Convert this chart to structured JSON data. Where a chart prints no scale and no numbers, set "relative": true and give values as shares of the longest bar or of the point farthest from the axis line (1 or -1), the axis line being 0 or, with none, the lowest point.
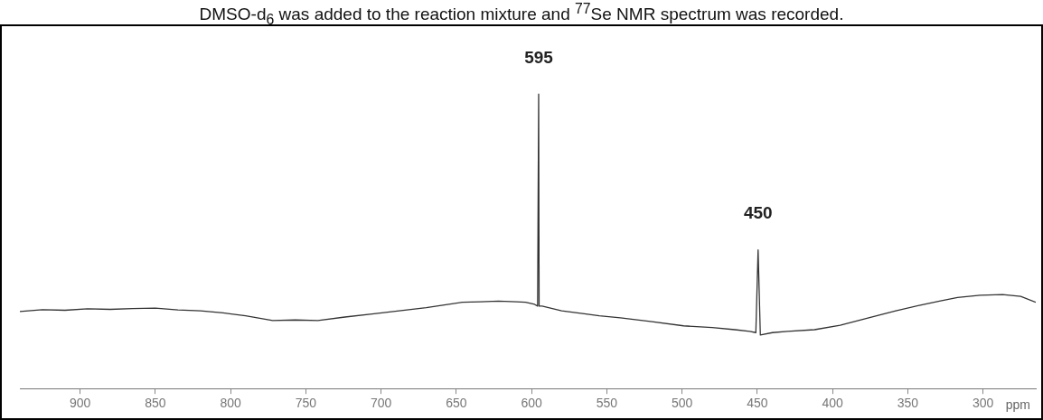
{
  "chart_data": {
    "type": "line",
    "title": "DMSO-d$_{6}$ was added to the reaction mixture and $^{77}$Se NMR spectrum was recorded.",
    "xlabel": "ppm",
    "relative": true,
    "grid": false,
    "legend": false,
    "marker": "none",
    "line_style": "solid",
    "tick_labels": "x",
    "xlim": [
      940,
      265
    ],
    "xticks": [
      900,
      850,
      800,
      750,
      700,
      650,
      600,
      550,
      500,
      450,
      400,
      350,
      300
    ],
    "series": [
      {
        "color": "#333333",
        "x": [
          940,
          925,
          910,
          895,
          880,
          865,
          850,
          835,
          820,
          805,
          790,
          772,
          757,
          742,
          724,
          706,
          688,
          670,
          658,
          646,
          634,
          622,
          610,
          604,
          598,
          596,
          595.3,
          595,
          593,
          580,
          565,
          555,
          541,
          520,
          499,
          480,
          465,
          455,
          451,
          449.5,
          448,
          440,
          430,
          412,
          395,
          376,
          358,
          341,
          329,
          317,
          302,
          287,
          275,
          265
        ],
        "values": [
          0.262,
          0.268,
          0.266,
          0.271,
          0.269,
          0.272,
          0.273,
          0.267,
          0.264,
          0.257,
          0.247,
          0.231,
          0.233,
          0.231,
          0.243,
          0.253,
          0.264,
          0.275,
          0.284,
          0.293,
          0.295,
          0.297,
          0.295,
          0.293,
          0.286,
          0.28,
          1,
          0.28,
          0.28,
          0.264,
          0.254,
          0.247,
          0.24,
          0.227,
          0.213,
          0.207,
          0.2,
          0.194,
          0.19,
          0.471,
          0.182,
          0.19,
          0.194,
          0.2,
          0.215,
          0.24,
          0.264,
          0.284,
          0.297,
          0.309,
          0.317,
          0.319,
          0.313,
          0.293
        ]
      }
    ],
    "annotations": [
      {
        "text": "595",
        "x": 595.3,
        "y": 1
      },
      {
        "text": "450",
        "x": 449.5,
        "y": 0.471
      }
    ]
  }
}
